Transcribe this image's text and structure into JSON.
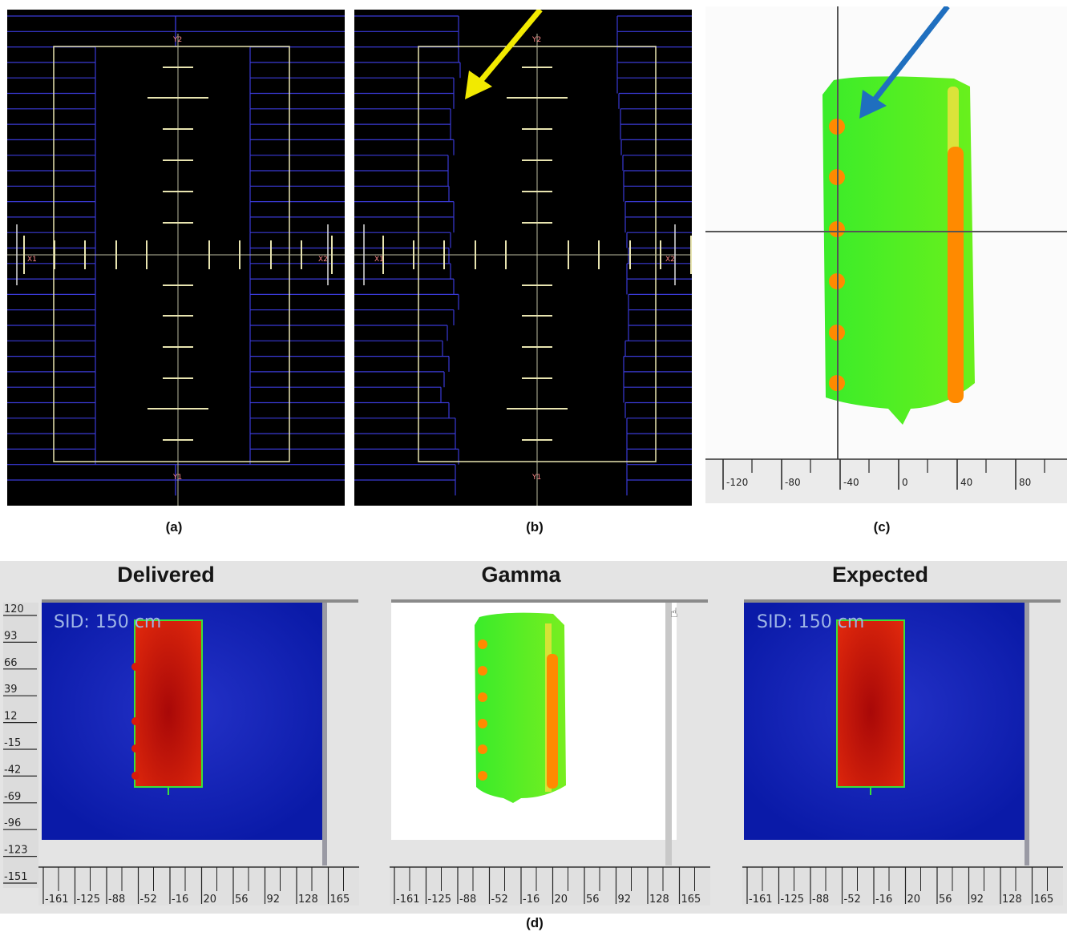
{
  "captions": {
    "a": "(a)",
    "b": "(b)",
    "c": "(c)",
    "d": "(d)"
  },
  "mlc_labels": {
    "y2": "Y2",
    "y1": "Y1",
    "x1": "X1",
    "x2": "X2"
  },
  "panel_c": {
    "axis_ticks": [
      "-120",
      "-80",
      "-40",
      "0",
      "40",
      "80"
    ],
    "arrow_color": "#1f6fbf"
  },
  "panel_b": {
    "arrow_color": "#f2ea00"
  },
  "panel_d": {
    "views": [
      {
        "title": "Delivered",
        "sid": "SID: 150 cm"
      },
      {
        "title": "Gamma",
        "sid": ""
      },
      {
        "title": "Expected",
        "sid": "SID: 150 cm"
      }
    ],
    "y_ticks": [
      "120",
      "93",
      "66",
      "39",
      "12",
      "-15",
      "-42",
      "-69",
      "-96",
      "-123",
      "-151"
    ],
    "x_ticks": [
      "-161",
      "-125",
      "-88",
      "-52",
      "-16",
      "20",
      "56",
      "92",
      "128",
      "165"
    ]
  },
  "colors": {
    "mlc_background": "#000000",
    "leaf_line": "#3a3ad6",
    "jaw_line": "#e8e4b0",
    "gamma_pass": "#2ee62e",
    "gamma_fail": "#ff8a00",
    "dose_high": "#d81a0a",
    "dose_low": "#0b1fb0"
  }
}
